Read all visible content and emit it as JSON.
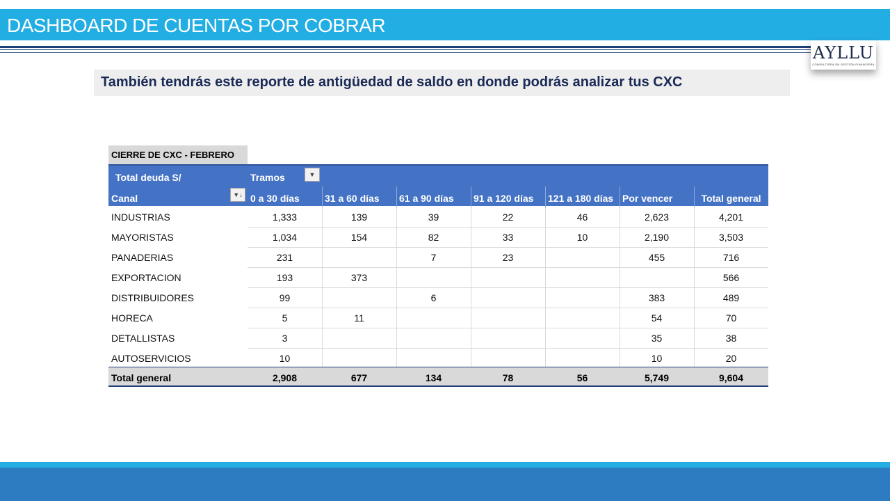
{
  "header": {
    "title": "DASHBOARD DE CUENTAS POR COBRAR",
    "logo_text": "AYLLU",
    "logo_subtext": "CONSULTORÍA EN GESTIÓN FINANCIERA"
  },
  "subtitle": "También tendrás este reporte de antigüedad de saldo en donde podrás analizar tus CXC",
  "pivot": {
    "caption": "CIERRE DE CXC - FEBRERO",
    "value_label": "Total deuda S/",
    "column_field": "Tramos",
    "row_field": "Canal",
    "columns": [
      "0 a 30 días",
      "31 a 60 días",
      "61 a 90 días",
      "91 a 120 días",
      "121 a 180 días",
      "Por vencer",
      "Total general"
    ],
    "rows": [
      {
        "canal": "INDUSTRIAS",
        "values": [
          "1,333",
          "139",
          "39",
          "22",
          "46",
          "2,623",
          "4,201"
        ]
      },
      {
        "canal": "MAYORISTAS",
        "values": [
          "1,034",
          "154",
          "82",
          "33",
          "10",
          "2,190",
          "3,503"
        ]
      },
      {
        "canal": "PANADERIAS",
        "values": [
          "231",
          "",
          "7",
          "23",
          "",
          "455",
          "716"
        ]
      },
      {
        "canal": "EXPORTACION",
        "values": [
          "193",
          "373",
          "",
          "",
          "",
          "",
          "566"
        ]
      },
      {
        "canal": "DISTRIBUIDORES",
        "values": [
          "99",
          "",
          "6",
          "",
          "",
          "383",
          "489"
        ]
      },
      {
        "canal": "HORECA",
        "values": [
          "5",
          "11",
          "",
          "",
          "",
          "54",
          "70"
        ]
      },
      {
        "canal": "DETALLISTAS",
        "values": [
          "3",
          "",
          "",
          "",
          "",
          "35",
          "38"
        ]
      },
      {
        "canal": "AUTOSERVICIOS",
        "values": [
          "10",
          "",
          "",
          "",
          "",
          "10",
          "20"
        ]
      }
    ],
    "total": {
      "label": "Total general",
      "values": [
        "2,908",
        "677",
        "134",
        "78",
        "56",
        "5,749",
        "9,604"
      ]
    }
  },
  "colors": {
    "banner": "#22ade3",
    "pivot_header": "#4472c4",
    "title_text": "#1a2a56",
    "footer": "#2d7cc1"
  }
}
